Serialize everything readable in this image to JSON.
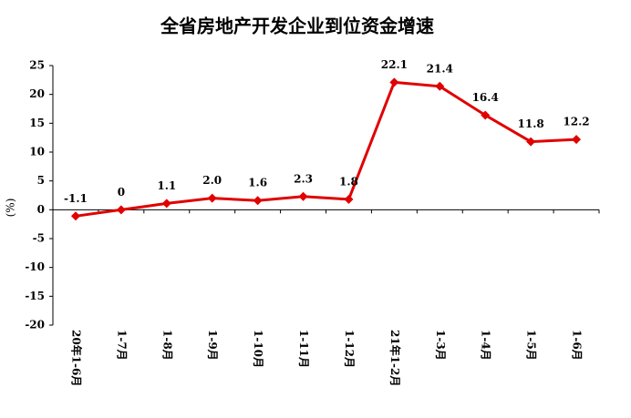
{
  "chart_data": {
    "type": "line",
    "title": "全省房地产开发企业到位资金增速",
    "y_label": "(%)",
    "categories": [
      "20年1-6月",
      "1-7月",
      "1-8月",
      "1-9月",
      "1-10月",
      "1-11月",
      "1-12月",
      "21年1-2月",
      "1-3月",
      "1-4月",
      "1-5月",
      "1-6月"
    ],
    "series": [
      {
        "name": "到位资金增速",
        "color": "#e00000",
        "values": [
          -1.1,
          0,
          1.1,
          2.0,
          1.6,
          2.3,
          1.8,
          22.1,
          21.4,
          16.4,
          11.8,
          12.2
        ],
        "value_labels": [
          "-1.1",
          "0",
          "1.1",
          "2.0",
          "1.6",
          "2.3",
          "1.8",
          "22.1",
          "21.4",
          "16.4",
          "11.8",
          "12.2"
        ]
      }
    ],
    "ylim": [
      -20,
      25
    ],
    "yticks": [
      -20,
      -15,
      -10,
      -5,
      0,
      5,
      10,
      15,
      20,
      25
    ],
    "legend": false
  }
}
